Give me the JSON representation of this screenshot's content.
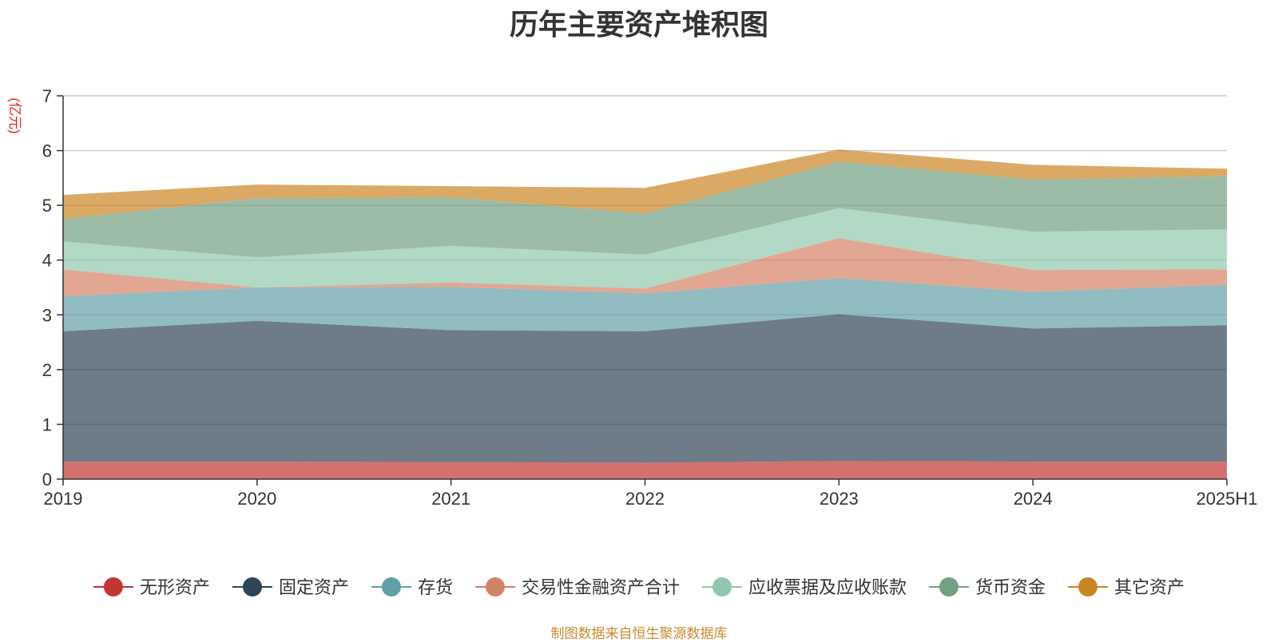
{
  "chart_data": {
    "type": "area",
    "stacked": true,
    "title": "历年主要资产堆积图",
    "ylabel": "(亿元)",
    "xlabel": "",
    "x": [
      "2019",
      "2020",
      "2021",
      "2022",
      "2023",
      "2024",
      "2025H1"
    ],
    "ylim": [
      0,
      7
    ],
    "yticks": [
      "0",
      "1",
      "2",
      "3",
      "4",
      "5",
      "6",
      "7"
    ],
    "grid": true,
    "legend_position": "bottom",
    "series": [
      {
        "name": "无形资产",
        "color": "#c23531",
        "values": [
          0.32,
          0.32,
          0.31,
          0.3,
          0.33,
          0.32,
          0.32
        ]
      },
      {
        "name": "固定资产",
        "color": "#2f4554",
        "values": [
          2.38,
          2.57,
          2.41,
          2.4,
          2.68,
          2.43,
          2.49
        ]
      },
      {
        "name": "存货",
        "color": "#61a0a8",
        "values": [
          0.64,
          0.61,
          0.79,
          0.69,
          0.66,
          0.67,
          0.74
        ]
      },
      {
        "name": "交易性金融资产合计",
        "color": "#d48265",
        "values": [
          0.49,
          0.0,
          0.08,
          0.09,
          0.73,
          0.4,
          0.28
        ]
      },
      {
        "name": "应收票据及应收账款",
        "color": "#91c7ae",
        "values": [
          0.51,
          0.55,
          0.67,
          0.62,
          0.55,
          0.7,
          0.73
        ]
      },
      {
        "name": "货币资金",
        "color": "#749f83",
        "values": [
          0.41,
          1.08,
          0.89,
          0.75,
          0.85,
          0.95,
          0.97
        ]
      },
      {
        "name": "其它资产",
        "color": "#ca8622",
        "values": [
          0.44,
          0.25,
          0.2,
          0.47,
          0.22,
          0.27,
          0.14
        ]
      }
    ]
  },
  "source_note": "制图数据来自恒生聚源数据库"
}
